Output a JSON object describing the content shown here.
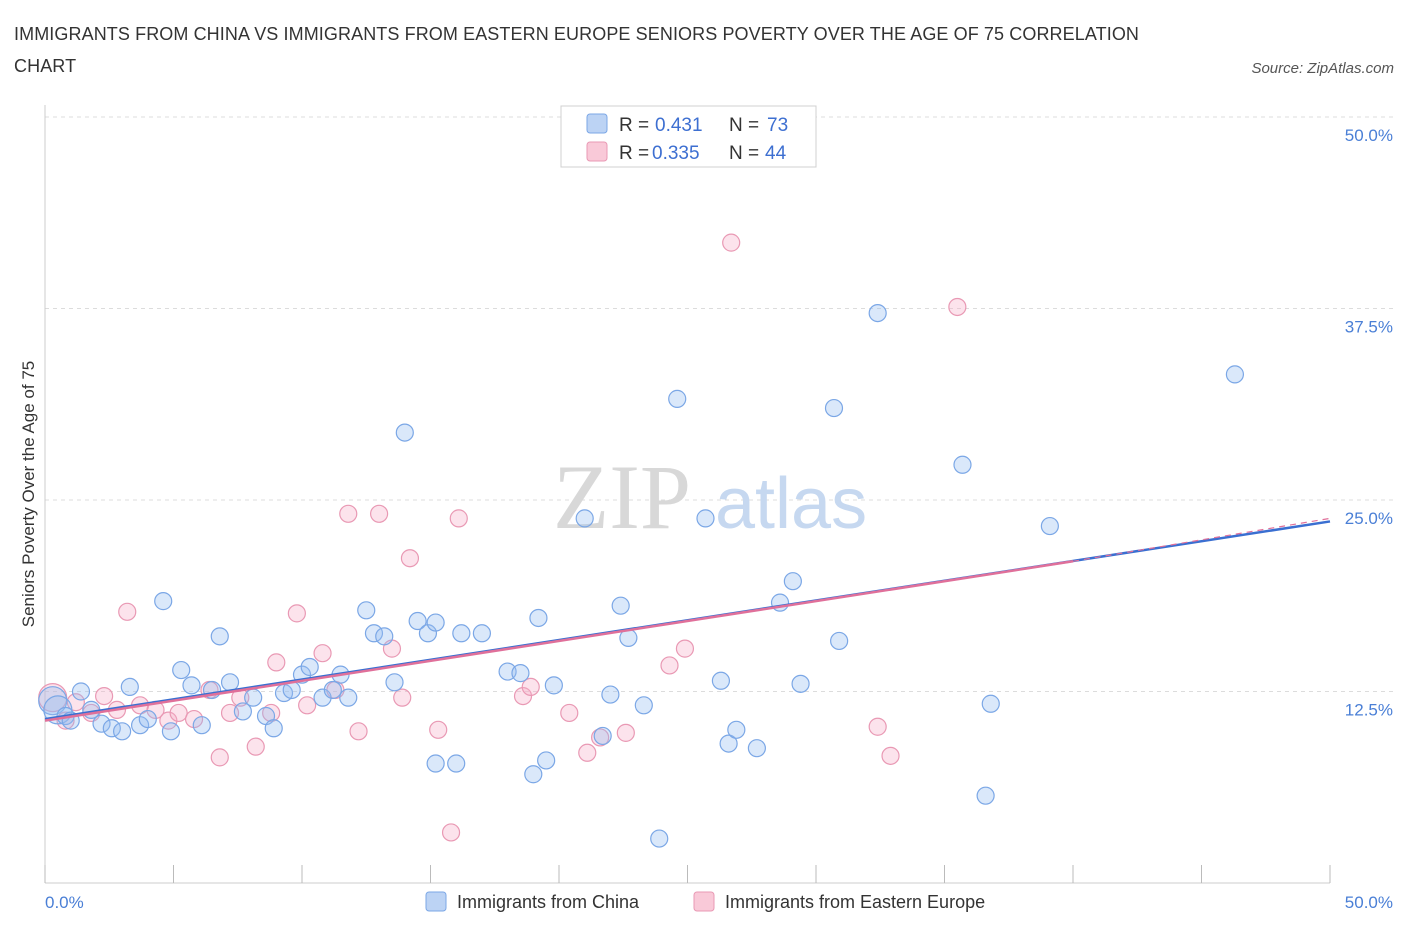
{
  "title": "IMMIGRANTS FROM CHINA VS IMMIGRANTS FROM EASTERN EUROPE SENIORS POVERTY OVER THE AGE OF 75 CORRELATION CHART",
  "source": "Source: ZipAtlas.com",
  "watermark": {
    "zip": "ZIP",
    "atlas": "atlas"
  },
  "colors": {
    "china": "#7ba7e6",
    "china_fill": "rgba(150,190,240,0.35)",
    "china_line": "#3a6fd1",
    "ee": "#e999b4",
    "ee_fill": "rgba(245,175,200,0.35)",
    "ee_line": "#e0709a",
    "grid": "#dcdcdc",
    "axis_label": "#4a7fd6"
  },
  "legend": {
    "rows": [
      {
        "r_label": "R =",
        "r_value": "0.431",
        "n_label": "N =",
        "n_value": "73"
      },
      {
        "r_label": "R =",
        "r_value": "0.335",
        "n_label": "N =",
        "n_value": "44"
      }
    ]
  },
  "bottom_legend": [
    "Immigrants from China",
    "Immigrants from Eastern Europe"
  ],
  "chart_data": {
    "type": "scatter",
    "title": "IMMIGRANTS FROM CHINA VS IMMIGRANTS FROM EASTERN EUROPE SENIORS POVERTY OVER THE AGE OF 75 CORRELATION CHART",
    "xlabel": "",
    "ylabel": "Seniors Poverty Over the Age of 75",
    "xlim": [
      0,
      50
    ],
    "ylim": [
      0,
      50
    ],
    "x_tick_labels": [
      "0.0%",
      "50.0%"
    ],
    "y_tick_labels": [
      "12.5%",
      "25.0%",
      "37.5%",
      "50.0%"
    ],
    "y_ticks": [
      12.5,
      25.0,
      37.5,
      50.0
    ],
    "grid": true,
    "legend_position": "top-center",
    "series": [
      {
        "name": "Immigrants from China",
        "r": 0.431,
        "n": 73,
        "trend": {
          "x": [
            0,
            50
          ],
          "y": [
            10.7,
            23.6
          ]
        },
        "points": [
          [
            0.3,
            11.9
          ],
          [
            0.5,
            11.3
          ],
          [
            0.8,
            10.9
          ],
          [
            1.0,
            10.6
          ],
          [
            1.4,
            12.5
          ],
          [
            1.8,
            11.3
          ],
          [
            2.2,
            10.4
          ],
          [
            2.6,
            10.1
          ],
          [
            3.0,
            9.9
          ],
          [
            3.3,
            12.8
          ],
          [
            3.7,
            10.3
          ],
          [
            4.0,
            10.7
          ],
          [
            4.6,
            18.4
          ],
          [
            4.9,
            9.9
          ],
          [
            5.3,
            13.9
          ],
          [
            5.7,
            12.9
          ],
          [
            6.1,
            10.3
          ],
          [
            6.5,
            12.6
          ],
          [
            6.8,
            16.1
          ],
          [
            7.2,
            13.1
          ],
          [
            7.7,
            11.2
          ],
          [
            8.1,
            12.1
          ],
          [
            8.6,
            10.9
          ],
          [
            8.9,
            10.1
          ],
          [
            9.3,
            12.4
          ],
          [
            9.6,
            12.6
          ],
          [
            10.0,
            13.6
          ],
          [
            10.3,
            14.1
          ],
          [
            10.8,
            12.1
          ],
          [
            11.2,
            12.6
          ],
          [
            11.5,
            13.6
          ],
          [
            11.8,
            12.1
          ],
          [
            12.5,
            17.8
          ],
          [
            12.8,
            16.3
          ],
          [
            13.2,
            16.1
          ],
          [
            13.6,
            13.1
          ],
          [
            14.0,
            29.4
          ],
          [
            14.5,
            17.1
          ],
          [
            14.9,
            16.3
          ],
          [
            15.2,
            17.0
          ],
          [
            15.2,
            7.8
          ],
          [
            16.0,
            7.8
          ],
          [
            16.2,
            16.3
          ],
          [
            17.0,
            16.3
          ],
          [
            18.0,
            13.8
          ],
          [
            18.5,
            13.7
          ],
          [
            19.0,
            7.1
          ],
          [
            19.2,
            17.3
          ],
          [
            19.5,
            8.0
          ],
          [
            19.8,
            12.9
          ],
          [
            21.0,
            23.8
          ],
          [
            21.7,
            9.6
          ],
          [
            22.0,
            12.3
          ],
          [
            22.4,
            18.1
          ],
          [
            22.7,
            16.0
          ],
          [
            23.3,
            11.6
          ],
          [
            23.9,
            2.9
          ],
          [
            24.6,
            31.6
          ],
          [
            25.7,
            23.8
          ],
          [
            26.3,
            13.2
          ],
          [
            26.6,
            9.1
          ],
          [
            26.9,
            10.0
          ],
          [
            27.7,
            8.8
          ],
          [
            28.6,
            18.3
          ],
          [
            29.1,
            19.7
          ],
          [
            29.4,
            13.0
          ],
          [
            30.7,
            31.0
          ],
          [
            30.9,
            15.8
          ],
          [
            32.4,
            37.2
          ],
          [
            35.7,
            27.3
          ],
          [
            36.8,
            11.7
          ],
          [
            36.6,
            5.7
          ],
          [
            39.1,
            23.3
          ],
          [
            46.3,
            33.2
          ]
        ]
      },
      {
        "name": "Immigrants from Eastern Europe",
        "r": 0.335,
        "n": 44,
        "trend": {
          "x": [
            0,
            40
          ],
          "y": [
            10.6,
            21.0
          ]
        },
        "trend_dashed": {
          "x": [
            40,
            50
          ],
          "y": [
            21.0,
            23.8
          ]
        },
        "points": [
          [
            0.3,
            12.1
          ],
          [
            0.8,
            10.6
          ],
          [
            1.2,
            11.8
          ],
          [
            1.8,
            11.1
          ],
          [
            2.3,
            12.2
          ],
          [
            2.8,
            11.3
          ],
          [
            3.2,
            17.7
          ],
          [
            3.7,
            11.6
          ],
          [
            4.3,
            11.3
          ],
          [
            4.8,
            10.6
          ],
          [
            5.2,
            11.1
          ],
          [
            5.8,
            10.7
          ],
          [
            6.4,
            12.6
          ],
          [
            6.8,
            8.2
          ],
          [
            7.2,
            11.1
          ],
          [
            7.6,
            12.1
          ],
          [
            8.2,
            8.9
          ],
          [
            8.8,
            11.1
          ],
          [
            9.0,
            14.4
          ],
          [
            9.8,
            17.6
          ],
          [
            10.2,
            11.6
          ],
          [
            10.8,
            15.0
          ],
          [
            11.3,
            12.6
          ],
          [
            11.8,
            24.1
          ],
          [
            12.2,
            9.9
          ],
          [
            13.0,
            24.1
          ],
          [
            13.5,
            15.3
          ],
          [
            13.9,
            12.1
          ],
          [
            14.2,
            21.2
          ],
          [
            15.3,
            10.0
          ],
          [
            15.8,
            3.3
          ],
          [
            16.1,
            23.8
          ],
          [
            18.6,
            12.2
          ],
          [
            18.9,
            12.8
          ],
          [
            20.4,
            11.1
          ],
          [
            21.1,
            8.5
          ],
          [
            21.6,
            9.5
          ],
          [
            22.6,
            9.8
          ],
          [
            24.3,
            14.2
          ],
          [
            24.9,
            15.3
          ],
          [
            26.7,
            41.8
          ],
          [
            32.4,
            10.2
          ],
          [
            32.9,
            8.3
          ],
          [
            35.5,
            37.6
          ]
        ]
      }
    ]
  }
}
